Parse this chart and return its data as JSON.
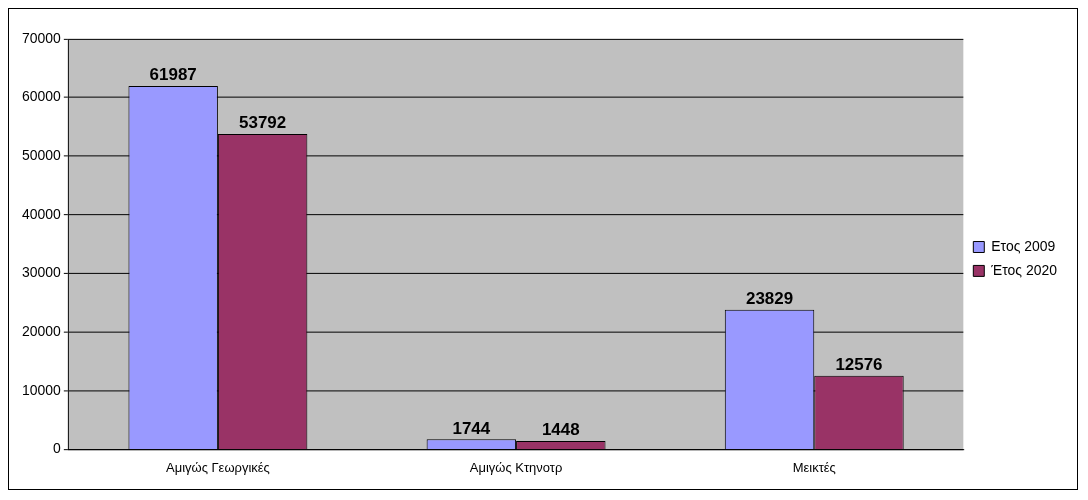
{
  "chart_data": {
    "type": "bar",
    "categories": [
      "Αμιγώς Γεωργικές",
      "Αμιγώς Κτηνοτρ",
      "Μεικτές"
    ],
    "series": [
      {
        "name": "Ετος 2009",
        "color": "#9999ff",
        "values": [
          61987,
          1744,
          23829
        ]
      },
      {
        "name": "Έτος 2020",
        "color": "#993366",
        "values": [
          53792,
          1448,
          12576
        ]
      }
    ],
    "ylim": [
      0,
      70000
    ],
    "yticks": [
      0,
      10000,
      20000,
      30000,
      40000,
      50000,
      60000,
      70000
    ],
    "grid": "y",
    "legend": "right",
    "data_labels": true
  }
}
